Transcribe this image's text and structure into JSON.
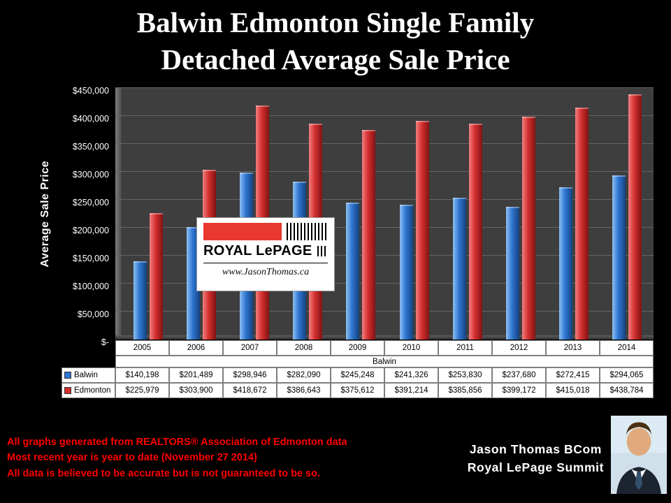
{
  "title_lines": [
    "Balwin Edmonton Single Family",
    "Detached Average Sale Price"
  ],
  "chart_data": {
    "type": "bar",
    "categories": [
      "2005",
      "2006",
      "2007",
      "2008",
      "2009",
      "2010",
      "2011",
      "2012",
      "2013",
      "2014"
    ],
    "series": [
      {
        "name": "Balwin",
        "color": "#2f76d2",
        "color_light": "#8cc0f2",
        "color_dark": "#14427f",
        "values": [
          140198,
          201489,
          298946,
          282090,
          245248,
          241326,
          253830,
          237680,
          272415,
          294065
        ]
      },
      {
        "name": "Edmonton",
        "color": "#d42f2f",
        "color_light": "#f28080",
        "color_dark": "#821212",
        "values": [
          225979,
          303900,
          418672,
          386643,
          375612,
          391214,
          385856,
          399172,
          415018,
          438784
        ]
      }
    ],
    "ylabel": "Average Sale Price",
    "xlabel": "Balwin",
    "ylim": [
      0,
      450000
    ],
    "ytick_step": 50000,
    "ytick_labels": [
      "$450,000",
      "$400,000",
      "$350,000",
      "$300,000",
      "$250,000",
      "$200,000",
      "$150,000",
      "$100,000",
      "$50,000",
      "$-"
    ],
    "grid": true,
    "legend_position": "table-left"
  },
  "logo": {
    "name": "ROYAL LePAGE",
    "website": "www.JasonThomas.ca"
  },
  "footer": {
    "disclaimer_lines": [
      "All graphs generated from REALTORS® Association of Edmonton data",
      "Most recent year is year to date (November 27 2014)",
      "All data is believed to be accurate but is not guaranteed to be so."
    ],
    "disclaimer_color": "#ff0000",
    "agent_name": "Jason Thomas BCom",
    "agent_company": "Royal LePage Summit"
  }
}
